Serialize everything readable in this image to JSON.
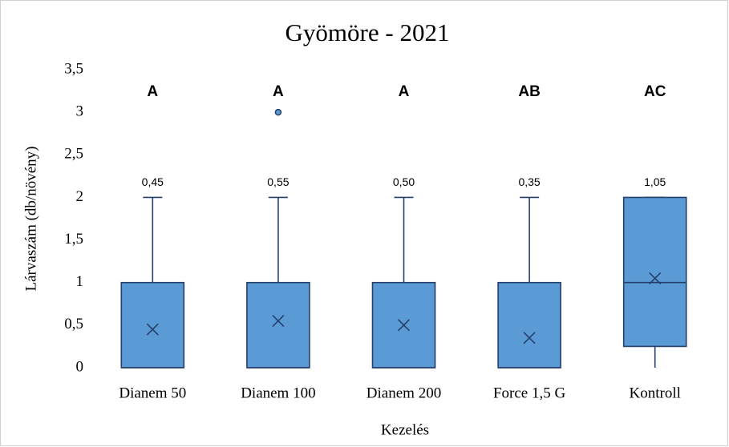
{
  "chart_data": {
    "type": "box",
    "title": "Gyömöre - 2021",
    "x_label": "Kezelés",
    "y_label": "Lárvaszám (db/növény)",
    "categories": [
      "Dianem 50",
      "Dianem 100",
      "Dianem 200",
      "Force 1,5 G",
      "Kontroll"
    ],
    "annotations": [
      "A",
      "A",
      "A",
      "AB",
      "AC"
    ],
    "boxes": [
      {
        "min": 0,
        "q1": 0,
        "median": 0,
        "q3": 1,
        "max": 2,
        "mean": 0.45,
        "mean_label": "0,45",
        "outliers": []
      },
      {
        "min": 0,
        "q1": 0,
        "median": 0,
        "q3": 1,
        "max": 2,
        "mean": 0.55,
        "mean_label": "0,55",
        "outliers": [
          3
        ]
      },
      {
        "min": 0,
        "q1": 0,
        "median": 0,
        "q3": 1,
        "max": 2,
        "mean": 0.5,
        "mean_label": "0,50",
        "outliers": []
      },
      {
        "min": 0,
        "q1": 0,
        "median": 0,
        "q3": 1,
        "max": 2,
        "mean": 0.35,
        "mean_label": "0,35",
        "outliers": []
      },
      {
        "min": 0,
        "q1": 0.25,
        "median": 1,
        "q3": 2,
        "max": 2,
        "mean": 1.05,
        "mean_label": "1,05",
        "outliers": []
      }
    ],
    "color": "#5b9bd5",
    "edge_color": "#253f6b",
    "ylim": [
      0,
      3.5
    ],
    "yticks": [
      0,
      {
        "value": 0.5,
        "label": "0,5"
      },
      1,
      {
        "value": 1.5,
        "label": "1,5"
      },
      2,
      {
        "value": 2.5,
        "label": "2,5"
      },
      3,
      {
        "value": 3.5,
        "label": "3,5"
      }
    ],
    "grid": false
  }
}
